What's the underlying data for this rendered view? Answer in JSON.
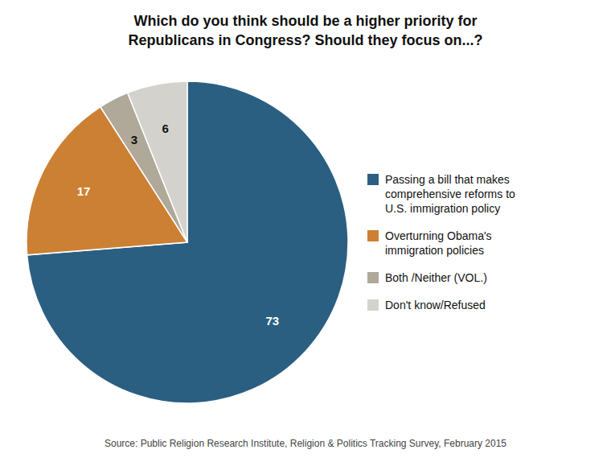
{
  "chart_data": {
    "type": "pie",
    "title": "Which do you think should be a higher priority for\nRepublicans in Congress? Should they focus on...?",
    "categories": [
      "Passing a bill that makes\ncomprehensive reforms to\nU.S. immigration policy",
      "Overturning Obama's\nimmigration policies",
      "Both /Neither (VOL.)",
      "Don't know/Refused"
    ],
    "values": [
      73,
      17,
      3,
      6
    ],
    "colors": [
      "#2b5f82",
      "#cc8033",
      "#b0a898",
      "#d4d2cc"
    ],
    "data_labels": true,
    "legend": "right",
    "annotations": [
      "Source: Public Religion Research Institute, Religion & Politics Tracking Survey, February 2015"
    ]
  }
}
